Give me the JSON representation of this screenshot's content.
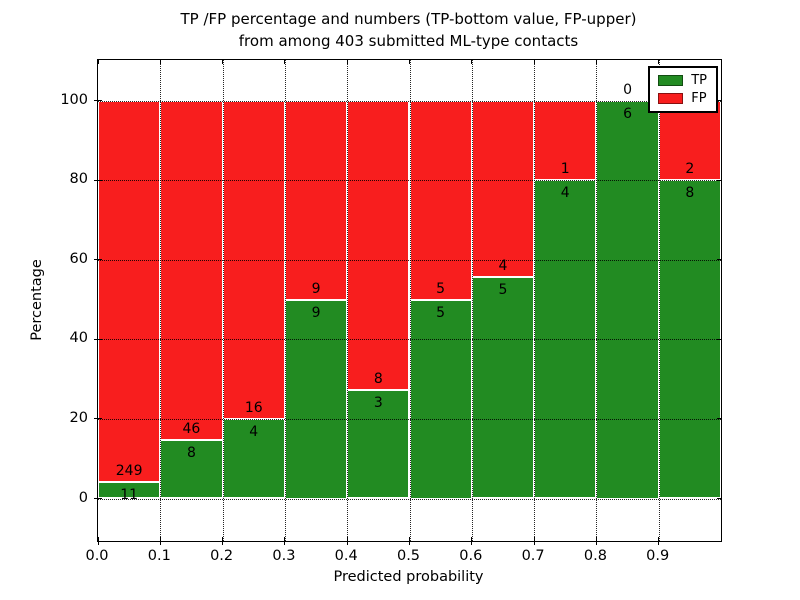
{
  "title": {
    "line1": "TP /FP percentage and numbers (TP-bottom value, FP-upper)",
    "line2": "from among 403 submitted ML-type contacts"
  },
  "axes": {
    "xlabel": "Predicted probability",
    "ylabel": "Percentage",
    "x_tick_labels": [
      "0.0",
      "0.1",
      "0.2",
      "0.3",
      "0.4",
      "0.5",
      "0.6",
      "0.7",
      "0.8",
      "0.9"
    ],
    "y_tick_labels": [
      "0",
      "20",
      "40",
      "60",
      "80",
      "100"
    ]
  },
  "legend": {
    "position": "upper right",
    "items": [
      {
        "label": "TP",
        "color": "#228b22"
      },
      {
        "label": "FP",
        "color": "#f81e1e"
      }
    ]
  },
  "chart_data": {
    "type": "bar",
    "stacked": true,
    "normalized_to_percent": true,
    "title": "TP /FP percentage and numbers (TP-bottom value, FP-upper) from among 403 submitted ML-type contacts",
    "xlabel": "Predicted probability",
    "ylabel": "Percentage",
    "total_contacts": 403,
    "bin_edges": [
      0.0,
      0.1,
      0.2,
      0.3,
      0.4,
      0.5,
      0.6,
      0.7,
      0.8,
      0.9,
      1.0
    ],
    "categories": [
      "0.0-0.1",
      "0.1-0.2",
      "0.2-0.3",
      "0.3-0.4",
      "0.4-0.5",
      "0.5-0.6",
      "0.6-0.7",
      "0.7-0.8",
      "0.8-0.9",
      "0.9-1.0"
    ],
    "series": [
      {
        "name": "TP",
        "color": "#228b22",
        "counts": [
          11,
          8,
          4,
          9,
          3,
          5,
          5,
          4,
          6,
          8
        ]
      },
      {
        "name": "FP",
        "color": "#f81e1e",
        "counts": [
          249,
          46,
          16,
          9,
          8,
          5,
          4,
          1,
          0,
          2
        ]
      }
    ],
    "tp_percent_of_bin": [
      4.2,
      14.8,
      20.0,
      50.0,
      27.3,
      50.0,
      55.6,
      80.0,
      100.0,
      80.0
    ],
    "bar_total_percent": 100,
    "xlim": [
      0.0,
      1.0
    ],
    "ylim": [
      -10.7,
      110.2
    ],
    "grid": true,
    "grid_style": "dotted",
    "legend_position": "upper right"
  }
}
